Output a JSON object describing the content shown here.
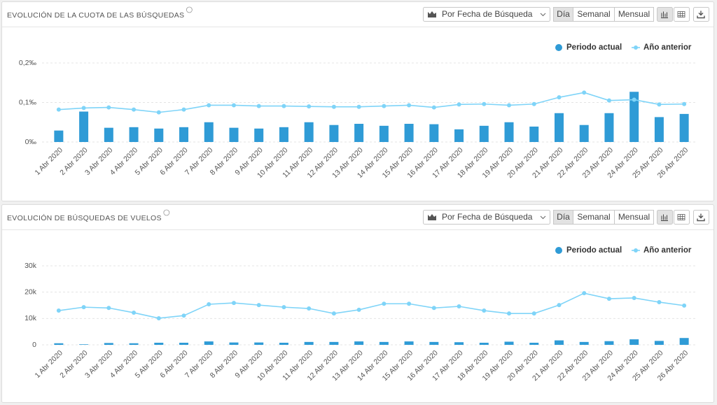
{
  "toolbar": {
    "dropdown": "Por Fecha de Búsqueda",
    "periods": [
      "Día",
      "Semanal",
      "Mensual"
    ]
  },
  "chart_data": [
    {
      "type": "bar",
      "title": "EVOLUCIÓN DE LA CUOTA DE LAS BÚSQUEDAS",
      "categories": [
        "1 Abr 2020",
        "2 Abr 2020",
        "3 Abr 2020",
        "4 Abr 2020",
        "5 Abr 2020",
        "6 Abr 2020",
        "7 Abr 2020",
        "8 Abr 2020",
        "9 Abr 2020",
        "10 Abr 2020",
        "11 Abr 2020",
        "12 Abr 2020",
        "13 Abr 2020",
        "14 Abr 2020",
        "15 Abr 2020",
        "16 Abr 2020",
        "17 Abr 2020",
        "18 Abr 2020",
        "19 Abr 2020",
        "20 Abr 2020",
        "21 Abr 2020",
        "22 Abr 2020",
        "23 Abr 2020",
        "24 Abr 2020",
        "25 Abr 2020",
        "26 Abr 2020"
      ],
      "series": [
        {
          "name": "Periodo actual",
          "type": "bar",
          "color": "#2f9bd6",
          "values": [
            0.029,
            0.077,
            0.036,
            0.0375,
            0.034,
            0.0375,
            0.05,
            0.036,
            0.034,
            0.0375,
            0.05,
            0.043,
            0.046,
            0.041,
            0.046,
            0.045,
            0.032,
            0.041,
            0.05,
            0.039,
            0.073,
            0.043,
            0.073,
            0.127,
            0.063,
            0.071
          ]
        },
        {
          "name": "Año anterior",
          "type": "line",
          "color": "#7fd4f8",
          "values": [
            0.082,
            0.086,
            0.0875,
            0.082,
            0.075,
            0.082,
            0.093,
            0.093,
            0.091,
            0.091,
            0.09,
            0.089,
            0.089,
            0.091,
            0.093,
            0.0875,
            0.095,
            0.096,
            0.093,
            0.096,
            0.113,
            0.125,
            0.105,
            0.107,
            0.095,
            0.096
          ]
        }
      ],
      "ylim": [
        0,
        0.2
      ],
      "yticks": [
        {
          "value": 0,
          "label": "0‰"
        },
        {
          "value": 0.1,
          "label": "0,1‰"
        },
        {
          "value": 0.2,
          "label": "0,2‰"
        }
      ],
      "grid": true,
      "legend": "top-right"
    },
    {
      "type": "bar",
      "title": "EVOLUCIÓN DE BÚSQUEDAS DE VUELOS",
      "categories": [
        "1 Abr 2020",
        "2 Abr 2020",
        "3 Abr 2020",
        "4 Abr 2020",
        "5 Abr 2020",
        "6 Abr 2020",
        "7 Abr 2020",
        "8 Abr 2020",
        "9 Abr 2020",
        "10 Abr 2020",
        "11 Abr 2020",
        "12 Abr 2020",
        "13 Abr 2020",
        "14 Abr 2020",
        "15 Abr 2020",
        "16 Abr 2020",
        "17 Abr 2020",
        "18 Abr 2020",
        "19 Abr 2020",
        "20 Abr 2020",
        "21 Abr 2020",
        "22 Abr 2020",
        "23 Abr 2020",
        "24 Abr 2020",
        "25 Abr 2020",
        "26 Abr 2020"
      ],
      "series": [
        {
          "name": "Periodo actual",
          "type": "bar",
          "color": "#2f9bd6",
          "values": [
            600,
            200,
            700,
            600,
            800,
            800,
            1300,
            900,
            900,
            800,
            1100,
            1100,
            1300,
            1100,
            1300,
            1100,
            1000,
            800,
            1200,
            800,
            1700,
            1100,
            1400,
            2100,
            1500,
            2600
          ]
        },
        {
          "name": "Año anterior",
          "type": "line",
          "color": "#7fd4f8",
          "values": [
            13000,
            14300,
            14000,
            12200,
            10100,
            11100,
            15400,
            15900,
            15100,
            14300,
            13800,
            11900,
            13300,
            15600,
            15600,
            14000,
            14600,
            13000,
            11900,
            11900,
            15100,
            19600,
            17500,
            17800,
            16200,
            14900
          ]
        }
      ],
      "ylim": [
        0,
        30000
      ],
      "yticks": [
        0,
        {
          "value": 10000,
          "label": "10k"
        },
        {
          "value": 20000,
          "label": "20k"
        },
        {
          "value": 30000,
          "label": "30k"
        }
      ],
      "grid": true,
      "legend": "top-right"
    }
  ]
}
